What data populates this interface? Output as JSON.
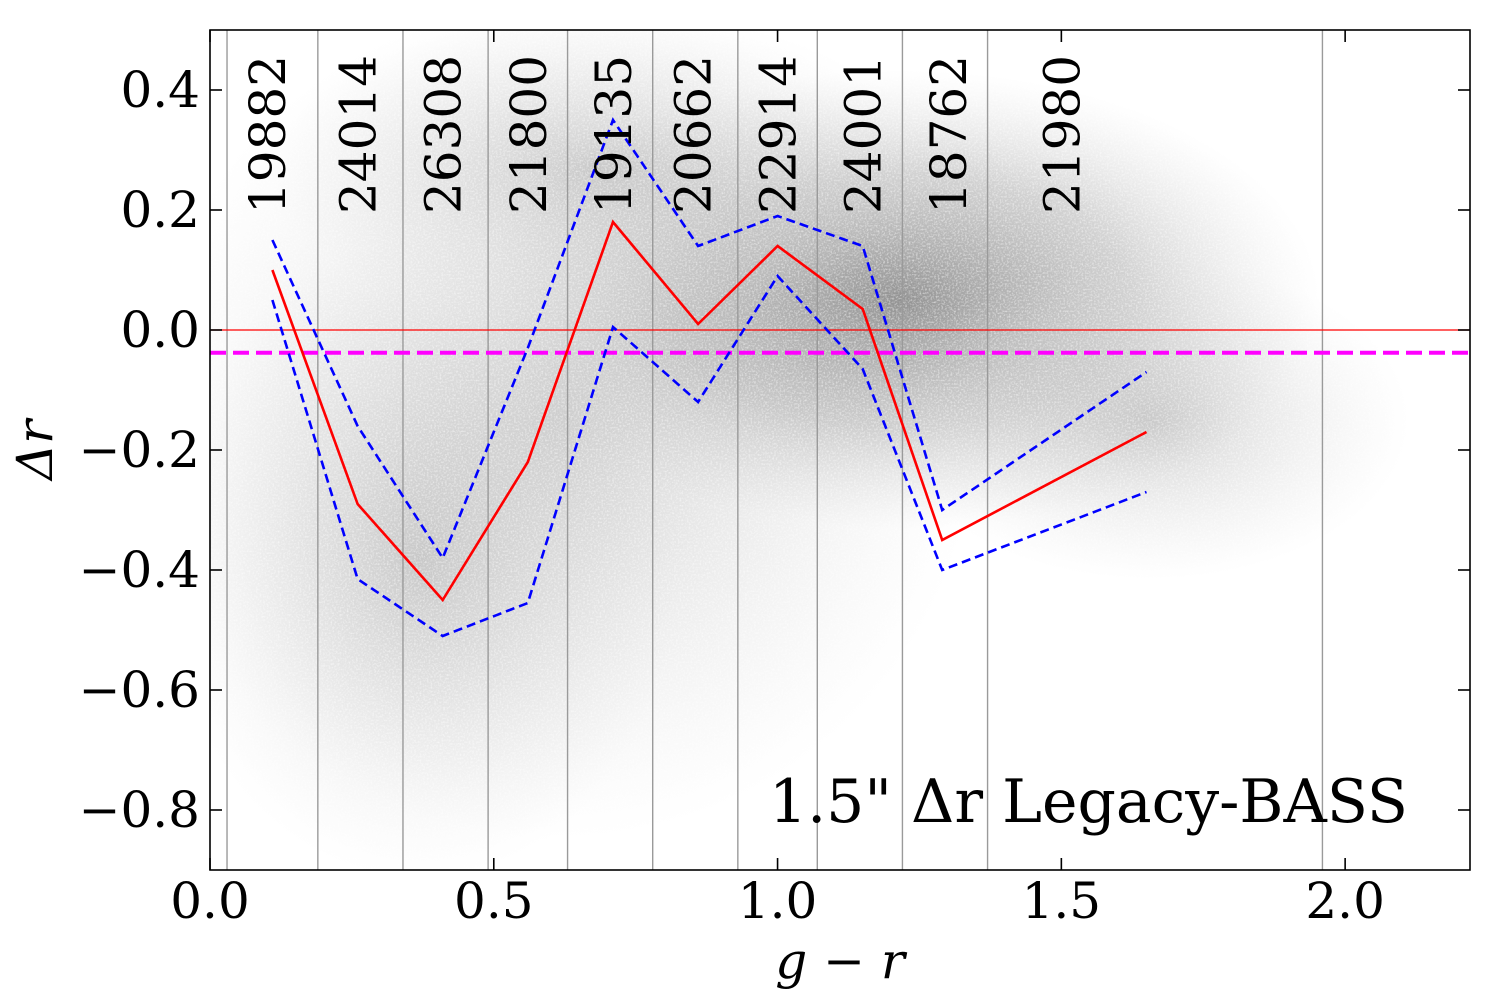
{
  "chart_data": {
    "type": "line",
    "xlabel": "g − r",
    "ylabel": "Δr",
    "xlim": [
      0.0,
      2.22
    ],
    "ylim": [
      -0.9,
      0.5
    ],
    "x_ticks": [
      0.0,
      0.5,
      1.0,
      1.5,
      2.0
    ],
    "x_tick_labels": [
      "0.0",
      "0.5",
      "1.0",
      "1.5",
      "2.0"
    ],
    "y_ticks": [
      0.4,
      0.2,
      0.0,
      -0.2,
      -0.4,
      -0.6,
      -0.8
    ],
    "y_tick_labels": [
      "0.4",
      "0.2",
      "0.0",
      "−0.2",
      "−0.4",
      "−0.6",
      "−0.8"
    ],
    "annotation": "1.5\" Δr Legacy-BASS",
    "bin_edges": [
      0.03,
      0.19,
      0.34,
      0.49,
      0.63,
      0.78,
      0.93,
      1.07,
      1.22,
      1.37,
      1.96
    ],
    "bin_counts": [
      {
        "x": 0.1,
        "label": "19882"
      },
      {
        "x": 0.26,
        "label": "24014"
      },
      {
        "x": 0.41,
        "label": "26308"
      },
      {
        "x": 0.56,
        "label": "21800"
      },
      {
        "x": 0.71,
        "label": "19135"
      },
      {
        "x": 0.85,
        "label": "20662"
      },
      {
        "x": 1.0,
        "label": "22914"
      },
      {
        "x": 1.15,
        "label": "24001"
      },
      {
        "x": 1.3,
        "label": "18762"
      },
      {
        "x": 1.5,
        "label": "21980"
      }
    ],
    "reference_lines": [
      {
        "name": "zero-line",
        "y": 0.0,
        "color": "#ff0000",
        "style": "solid"
      },
      {
        "name": "mean-offset-line",
        "y": -0.038,
        "color": "#ff00ff",
        "style": "dashed"
      }
    ],
    "series": [
      {
        "name": "median",
        "color": "#ff0000",
        "style": "solid",
        "x": [
          0.11,
          0.26,
          0.41,
          0.56,
          0.71,
          0.86,
          1.0,
          1.15,
          1.29,
          1.65
        ],
        "y": [
          0.1,
          -0.29,
          -0.45,
          -0.22,
          0.18,
          0.01,
          0.14,
          0.035,
          -0.35,
          -0.17
        ]
      },
      {
        "name": "upper-bound",
        "color": "#0000ff",
        "style": "dashed",
        "x": [
          0.11,
          0.26,
          0.41,
          0.56,
          0.71,
          0.86,
          1.0,
          1.15,
          1.29,
          1.65
        ],
        "y": [
          0.15,
          -0.16,
          -0.38,
          -0.03,
          0.35,
          0.14,
          0.19,
          0.14,
          -0.3,
          -0.07
        ]
      },
      {
        "name": "lower-bound",
        "color": "#0000ff",
        "style": "dashed",
        "x": [
          0.11,
          0.26,
          0.41,
          0.56,
          0.71,
          0.86,
          1.0,
          1.15,
          1.29,
          1.65
        ],
        "y": [
          0.05,
          -0.415,
          -0.51,
          -0.455,
          0.005,
          -0.12,
          0.09,
          -0.065,
          -0.4,
          -0.27
        ]
      }
    ]
  }
}
